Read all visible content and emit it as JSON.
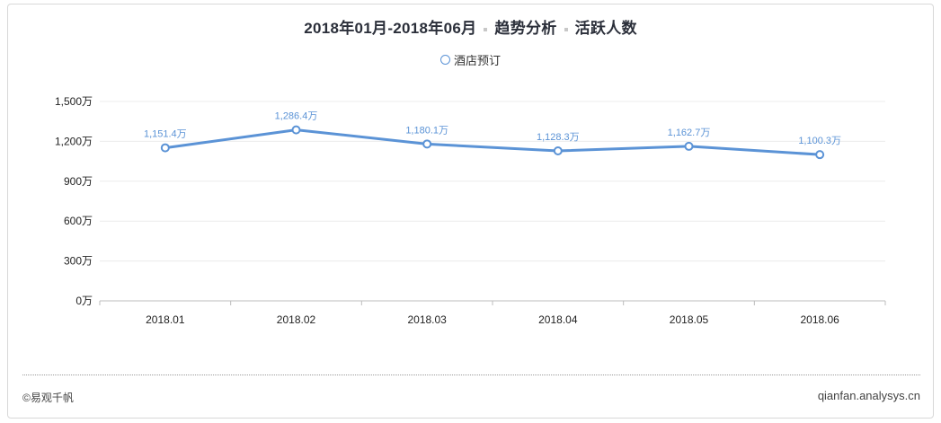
{
  "header": {
    "date_range": "2018年01月-2018年06月",
    "analysis_type": "趋势分析",
    "metric": "活跃人数"
  },
  "footer": {
    "copyright": "©易观千帆",
    "site": "qianfan.analysys.cn"
  },
  "colors": {
    "series": "#5b93d6",
    "grid": "#ececec",
    "axis_text": "#222222"
  },
  "chart_data": {
    "type": "line",
    "title": "",
    "xlabel": "",
    "ylabel": "",
    "categories": [
      "2018.01",
      "2018.02",
      "2018.03",
      "2018.04",
      "2018.05",
      "2018.06"
    ],
    "series": [
      {
        "name": "酒店预订",
        "values": [
          1151.4,
          1286.4,
          1180.1,
          1128.3,
          1162.7,
          1100.3
        ],
        "labels": [
          "1,151.4万",
          "1,286.4万",
          "1,180.1万",
          "1,128.3万",
          "1,162.7万",
          "1,100.3万"
        ]
      }
    ],
    "ylim": [
      0,
      1500
    ],
    "yticks": [
      0,
      300,
      600,
      900,
      1200,
      1500
    ],
    "ytick_labels": [
      "0万",
      "300万",
      "600万",
      "900万",
      "1,200万",
      "1,500万"
    ],
    "grid": true,
    "legend": "top-center"
  }
}
